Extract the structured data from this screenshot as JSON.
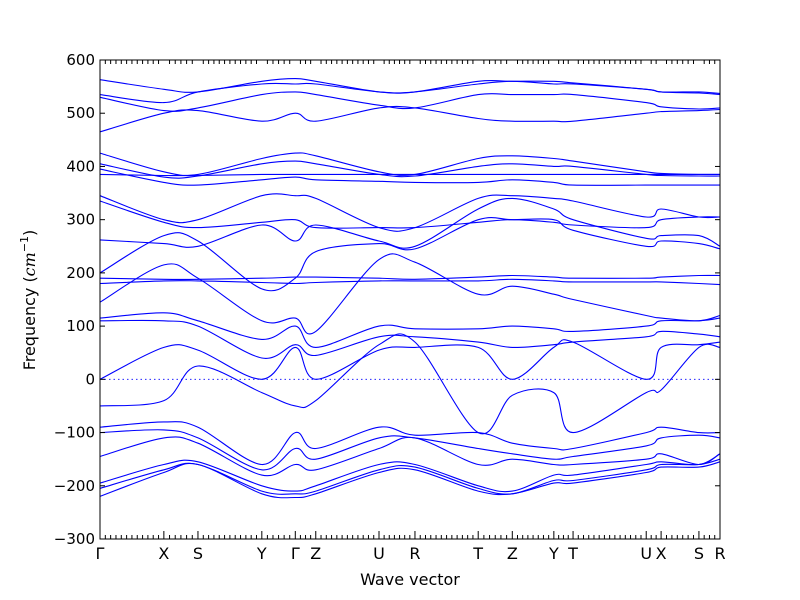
{
  "chart_data": {
    "type": "line",
    "title": "",
    "xlabel": "Wave vector",
    "ylabel_text": "Frequency (",
    "ylabel_unit": "cm",
    "ylabel_exp": "−1",
    "ylabel_close": ")",
    "ylim": [
      -300,
      600
    ],
    "yticks": [
      -300,
      -200,
      -100,
      0,
      100,
      200,
      300,
      400,
      500,
      600
    ],
    "xlim": [
      0,
      1
    ],
    "grid": false,
    "zero_line": true,
    "series_color": "#0000ff",
    "high_symmetry_points": [
      {
        "label": "Γ",
        "x": 0.0
      },
      {
        "label": "X",
        "x": 0.103
      },
      {
        "label": "S",
        "x": 0.158
      },
      {
        "label": "Y",
        "x": 0.261
      },
      {
        "label": "Γ",
        "x": 0.315
      },
      {
        "label": "Z",
        "x": 0.348
      },
      {
        "label": "U",
        "x": 0.45
      },
      {
        "label": "R",
        "x": 0.508
      },
      {
        "label": "T",
        "x": 0.61
      },
      {
        "label": "Z",
        "x": 0.665
      },
      {
        "label": "Y",
        "x": 0.732
      },
      {
        "label": "T",
        "x": 0.763
      },
      {
        "label": "U",
        "x": 0.881
      },
      {
        "label": "X",
        "x": 0.905
      },
      {
        "label": "S",
        "x": 0.966
      },
      {
        "label": "R",
        "x": 1.0
      }
    ],
    "series": [
      {
        "x": [
          0,
          0.103,
          0.158,
          0.261,
          0.315,
          0.348,
          0.45,
          0.508,
          0.61,
          0.665,
          0.732,
          0.763,
          0.881,
          0.905,
          0.966,
          1.0
        ],
        "values": [
          563,
          545,
          540,
          560,
          565,
          560,
          540,
          540,
          560,
          560,
          560,
          557,
          545,
          540,
          540,
          537
        ]
      },
      {
        "x": [
          0,
          0.103,
          0.158,
          0.261,
          0.315,
          0.348,
          0.45,
          0.508,
          0.61,
          0.665,
          0.732,
          0.763,
          0.881,
          0.905,
          0.966,
          1.0
        ],
        "values": [
          535,
          520,
          540,
          555,
          555,
          555,
          540,
          540,
          555,
          560,
          555,
          555,
          545,
          540,
          538,
          535
        ]
      },
      {
        "x": [
          0,
          0.103,
          0.158,
          0.261,
          0.315,
          0.348,
          0.45,
          0.508,
          0.61,
          0.665,
          0.732,
          0.763,
          0.881,
          0.905,
          0.966,
          1.0
        ],
        "values": [
          530,
          505,
          510,
          535,
          540,
          535,
          515,
          510,
          535,
          535,
          535,
          535,
          520,
          512,
          508,
          510
        ]
      },
      {
        "x": [
          0,
          0.103,
          0.158,
          0.261,
          0.315,
          0.348,
          0.45,
          0.508,
          0.61,
          0.665,
          0.732,
          0.763,
          0.881,
          0.905,
          0.966,
          1.0
        ],
        "values": [
          465,
          500,
          505,
          485,
          500,
          485,
          510,
          510,
          490,
          485,
          485,
          485,
          500,
          503,
          505,
          507
        ]
      },
      {
        "x": [
          0,
          0.103,
          0.158,
          0.261,
          0.315,
          0.348,
          0.45,
          0.508,
          0.61,
          0.665,
          0.732,
          0.763,
          0.881,
          0.905,
          0.966,
          1.0
        ],
        "values": [
          425,
          390,
          385,
          415,
          425,
          420,
          390,
          385,
          415,
          420,
          415,
          410,
          390,
          387,
          385,
          385
        ]
      },
      {
        "x": [
          0,
          0.103,
          0.158,
          0.261,
          0.315,
          0.348,
          0.45,
          0.508,
          0.61,
          0.665,
          0.732,
          0.763,
          0.881,
          0.905,
          0.966,
          1.0
        ],
        "values": [
          405,
          380,
          382,
          405,
          410,
          405,
          385,
          382,
          400,
          405,
          400,
          400,
          385,
          383,
          382,
          382
        ]
      },
      {
        "x": [
          0,
          0.103,
          0.158,
          0.261,
          0.315,
          0.348,
          0.45,
          0.508,
          0.61,
          0.665,
          0.732,
          0.763,
          0.881,
          0.905,
          0.966,
          1.0
        ],
        "values": [
          385,
          383,
          383,
          385,
          385,
          385,
          385,
          385,
          385,
          385,
          385,
          385,
          385,
          385,
          385,
          385
        ]
      },
      {
        "x": [
          0,
          0.103,
          0.158,
          0.261,
          0.315,
          0.348,
          0.45,
          0.508,
          0.61,
          0.665,
          0.732,
          0.763,
          0.881,
          0.905,
          0.966,
          1.0
        ],
        "values": [
          395,
          370,
          365,
          375,
          380,
          375,
          372,
          370,
          370,
          375,
          370,
          365,
          365,
          365,
          365,
          365
        ]
      },
      {
        "x": [
          0,
          0.103,
          0.158,
          0.261,
          0.315,
          0.348,
          0.45,
          0.508,
          0.61,
          0.665,
          0.732,
          0.763,
          0.881,
          0.905,
          0.966,
          1.0
        ],
        "values": [
          345,
          300,
          300,
          345,
          345,
          340,
          285,
          285,
          340,
          345,
          340,
          335,
          305,
          320,
          305,
          305
        ]
      },
      {
        "x": [
          0,
          0.103,
          0.158,
          0.261,
          0.315,
          0.348,
          0.45,
          0.508,
          0.61,
          0.665,
          0.732,
          0.763,
          0.881,
          0.905,
          0.966,
          1.0
        ],
        "values": [
          335,
          295,
          285,
          295,
          300,
          285,
          285,
          285,
          295,
          300,
          295,
          290,
          285,
          300,
          305,
          305
        ]
      },
      {
        "x": [
          0,
          0.103,
          0.158,
          0.261,
          0.315,
          0.348,
          0.45,
          0.508,
          0.61,
          0.665,
          0.732,
          0.763,
          0.881,
          0.905,
          0.966,
          1.0
        ],
        "values": [
          262,
          255,
          250,
          290,
          260,
          290,
          260,
          250,
          320,
          340,
          320,
          300,
          265,
          270,
          270,
          250
        ]
      },
      {
        "x": [
          0,
          0.103,
          0.158,
          0.261,
          0.315,
          0.348,
          0.45,
          0.508,
          0.61,
          0.665,
          0.732,
          0.763,
          0.881,
          0.905,
          0.966,
          1.0
        ],
        "values": [
          200,
          270,
          260,
          170,
          190,
          240,
          255,
          245,
          300,
          300,
          300,
          280,
          250,
          260,
          255,
          245
        ]
      },
      {
        "x": [
          0,
          0.103,
          0.158,
          0.261,
          0.315,
          0.348,
          0.45,
          0.508,
          0.61,
          0.665,
          0.732,
          0.763,
          0.881,
          0.905,
          0.966,
          1.0
        ],
        "values": [
          190,
          188,
          188,
          190,
          192,
          192,
          190,
          188,
          192,
          195,
          192,
          190,
          190,
          192,
          195,
          195
        ]
      },
      {
        "x": [
          0,
          0.103,
          0.158,
          0.261,
          0.315,
          0.348,
          0.45,
          0.508,
          0.61,
          0.665,
          0.732,
          0.763,
          0.881,
          0.905,
          0.966,
          1.0
        ],
        "values": [
          180,
          185,
          185,
          182,
          180,
          182,
          185,
          185,
          185,
          188,
          185,
          183,
          183,
          183,
          180,
          178
        ]
      },
      {
        "x": [
          0,
          0.103,
          0.158,
          0.261,
          0.315,
          0.348,
          0.45,
          0.508,
          0.61,
          0.665,
          0.732,
          0.763,
          0.881,
          0.905,
          0.966,
          1.0
        ],
        "values": [
          145,
          215,
          190,
          110,
          115,
          90,
          225,
          220,
          160,
          175,
          160,
          150,
          120,
          115,
          110,
          120
        ]
      },
      {
        "x": [
          0,
          0.103,
          0.158,
          0.261,
          0.315,
          0.348,
          0.45,
          0.508,
          0.61,
          0.665,
          0.732,
          0.763,
          0.881,
          0.905,
          0.966,
          1.0
        ],
        "values": [
          115,
          125,
          110,
          75,
          100,
          60,
          100,
          95,
          95,
          100,
          95,
          90,
          100,
          110,
          110,
          115
        ]
      },
      {
        "x": [
          0,
          0.103,
          0.158,
          0.261,
          0.315,
          0.348,
          0.45,
          0.508,
          0.61,
          0.665,
          0.732,
          0.763,
          0.881,
          0.905,
          0.966,
          1.0
        ],
        "values": [
          110,
          110,
          100,
          40,
          65,
          45,
          80,
          80,
          70,
          60,
          65,
          70,
          80,
          90,
          85,
          80
        ]
      },
      {
        "x": [
          0,
          0.103,
          0.158,
          0.261,
          0.315,
          0.348,
          0.45,
          0.508,
          0.61,
          0.665,
          0.732,
          0.763,
          0.881,
          0.905,
          0.966,
          1.0
        ],
        "values": [
          0,
          60,
          55,
          0,
          60,
          0,
          55,
          60,
          60,
          0,
          60,
          70,
          0,
          60,
          65,
          70
        ]
      },
      {
        "x": [
          0,
          0.103,
          0.158,
          0.261,
          0.315,
          0.348,
          0.45,
          0.508,
          0.61,
          0.665,
          0.732,
          0.763,
          0.881,
          0.905,
          0.966,
          1.0
        ],
        "values": [
          -50,
          -40,
          25,
          -25,
          -50,
          -40,
          65,
          70,
          -100,
          -30,
          -25,
          -100,
          -25,
          -20,
          60,
          60
        ]
      },
      {
        "x": [
          0,
          0.103,
          0.158,
          0.261,
          0.315,
          0.348,
          0.45,
          0.508,
          0.61,
          0.665,
          0.732,
          0.763,
          0.881,
          0.905,
          0.966,
          1.0
        ],
        "values": [
          -90,
          -80,
          -90,
          -160,
          -100,
          -130,
          -90,
          -105,
          -100,
          -120,
          -130,
          -130,
          -100,
          -90,
          -100,
          -100
        ]
      },
      {
        "x": [
          0,
          0.103,
          0.158,
          0.261,
          0.315,
          0.348,
          0.45,
          0.508,
          0.61,
          0.665,
          0.732,
          0.763,
          0.881,
          0.905,
          0.966,
          1.0
        ],
        "values": [
          -100,
          -95,
          -110,
          -170,
          -130,
          -150,
          -110,
          -110,
          -130,
          -140,
          -150,
          -145,
          -125,
          -110,
          -105,
          -110
        ]
      },
      {
        "x": [
          0,
          0.103,
          0.158,
          0.261,
          0.315,
          0.348,
          0.45,
          0.508,
          0.61,
          0.665,
          0.732,
          0.763,
          0.881,
          0.905,
          0.966,
          1.0
        ],
        "values": [
          -145,
          -110,
          -120,
          -180,
          -160,
          -170,
          -130,
          -110,
          -160,
          -150,
          -160,
          -160,
          -150,
          -140,
          -160,
          -140
        ]
      },
      {
        "x": [
          0,
          0.103,
          0.158,
          0.261,
          0.315,
          0.348,
          0.45,
          0.508,
          0.61,
          0.665,
          0.732,
          0.763,
          0.881,
          0.905,
          0.966,
          1.0
        ],
        "values": [
          -195,
          -160,
          -155,
          -200,
          -210,
          -200,
          -160,
          -160,
          -200,
          -210,
          -180,
          -180,
          -160,
          -155,
          -160,
          -140
        ]
      },
      {
        "x": [
          0,
          0.103,
          0.158,
          0.261,
          0.315,
          0.348,
          0.45,
          0.508,
          0.61,
          0.665,
          0.732,
          0.763,
          0.881,
          0.905,
          0.966,
          1.0
        ],
        "values": [
          -205,
          -170,
          -160,
          -210,
          -215,
          -210,
          -170,
          -165,
          -205,
          -215,
          -190,
          -190,
          -170,
          -160,
          -160,
          -150
        ]
      },
      {
        "x": [
          0,
          0.103,
          0.158,
          0.261,
          0.315,
          0.348,
          0.45,
          0.508,
          0.61,
          0.665,
          0.732,
          0.763,
          0.881,
          0.905,
          0.966,
          1.0
        ],
        "values": [
          -220,
          -175,
          -160,
          -215,
          -222,
          -215,
          -175,
          -170,
          -210,
          -215,
          -195,
          -195,
          -175,
          -165,
          -165,
          -155
        ]
      }
    ]
  }
}
